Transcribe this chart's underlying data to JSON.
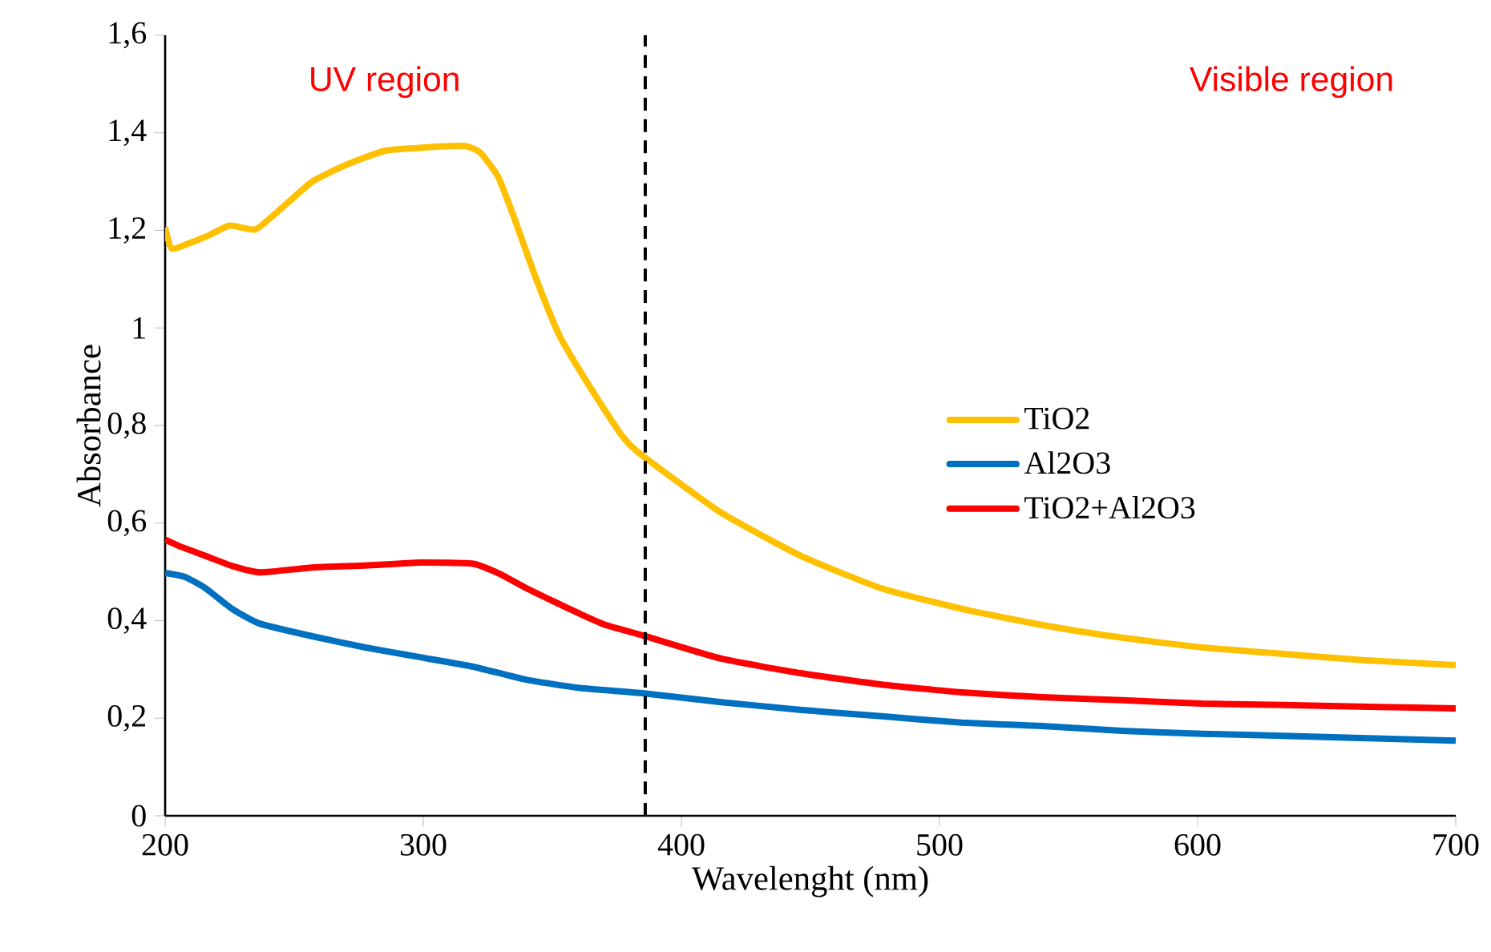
{
  "chart_data": {
    "type": "line",
    "xlabel": "Wavelenght (nm)",
    "ylabel": "Absorbance",
    "annotations": [
      "UV region",
      "Visible region"
    ],
    "xlim": [
      200,
      700
    ],
    "xticks": [
      200,
      300,
      400,
      500,
      600,
      700
    ],
    "ylim": [
      0,
      1.6
    ],
    "yticks": [
      {
        "value": 0,
        "label": "0"
      },
      {
        "value": 0.2,
        "label": "0,2"
      },
      {
        "value": 0.4,
        "label": "0,4"
      },
      {
        "value": 0.6,
        "label": "0,6"
      },
      {
        "value": 0.8,
        "label": "0,8"
      },
      {
        "value": 1,
        "label": "1"
      },
      {
        "value": 1.2,
        "label": "1,2"
      },
      {
        "value": 1.4,
        "label": "1,4"
      },
      {
        "value": 1.6,
        "label": "1,6"
      }
    ],
    "grid": false,
    "legend": "right",
    "marker": "none",
    "line_style": "solid",
    "ref_lines": [
      {
        "axis": "x",
        "value": 386,
        "color": "#000000",
        "line_style": "dashed"
      }
    ],
    "series": [
      {
        "name": "TiO2",
        "color": "#ffc000",
        "x": [
          200,
          202.5,
          209,
          217,
          225,
          235,
          245,
          257,
          270,
          285,
          300.6,
          316,
          322,
          329,
          335,
          344,
          353,
          366,
          377,
          384,
          415.5,
          446.6,
          477.6,
          508.7,
          539.8,
          570.8,
          601.9,
          633,
          664,
          700
        ],
        "values": [
          1.206,
          1.163,
          1.173,
          1.19,
          1.21,
          1.202,
          1.245,
          1.3,
          1.334,
          1.363,
          1.37,
          1.373,
          1.36,
          1.31,
          1.229,
          1.097,
          0.982,
          0.867,
          0.779,
          0.742,
          0.621,
          0.532,
          0.466,
          0.424,
          0.391,
          0.365,
          0.345,
          0.332,
          0.319,
          0.309
        ]
      },
      {
        "name": "Al2O3",
        "color": "#0070c0",
        "x": [
          200,
          207.5,
          215.5,
          226,
          236.5,
          257,
          277.6,
          298.8,
          319,
          339.8,
          360.7,
          385.5,
          415.5,
          446.6,
          477.6,
          508.7,
          539.8,
          570.8,
          601.9,
          633,
          700
        ],
        "values": [
          0.498,
          0.49,
          0.467,
          0.424,
          0.394,
          0.368,
          0.345,
          0.325,
          0.306,
          0.279,
          0.262,
          0.251,
          0.233,
          0.217,
          0.204,
          0.191,
          0.184,
          0.174,
          0.168,
          0.164,
          0.154
        ]
      },
      {
        "name": "TiO2+Al2O3",
        "color": "#ff0000",
        "x": [
          200,
          205.4,
          215.5,
          226,
          237,
          257,
          277.6,
          298.8,
          319,
          329.6,
          339.8,
          350.3,
          360.7,
          370.8,
          385.5,
          415.5,
          446.6,
          477.6,
          508.7,
          539.8,
          570.8,
          601.9,
          633,
          700
        ],
        "values": [
          0.566,
          0.553,
          0.533,
          0.512,
          0.499,
          0.509,
          0.513,
          0.519,
          0.517,
          0.496,
          0.467,
          0.44,
          0.414,
          0.391,
          0.369,
          0.322,
          0.292,
          0.269,
          0.253,
          0.243,
          0.237,
          0.23,
          0.227,
          0.22
        ]
      }
    ]
  }
}
